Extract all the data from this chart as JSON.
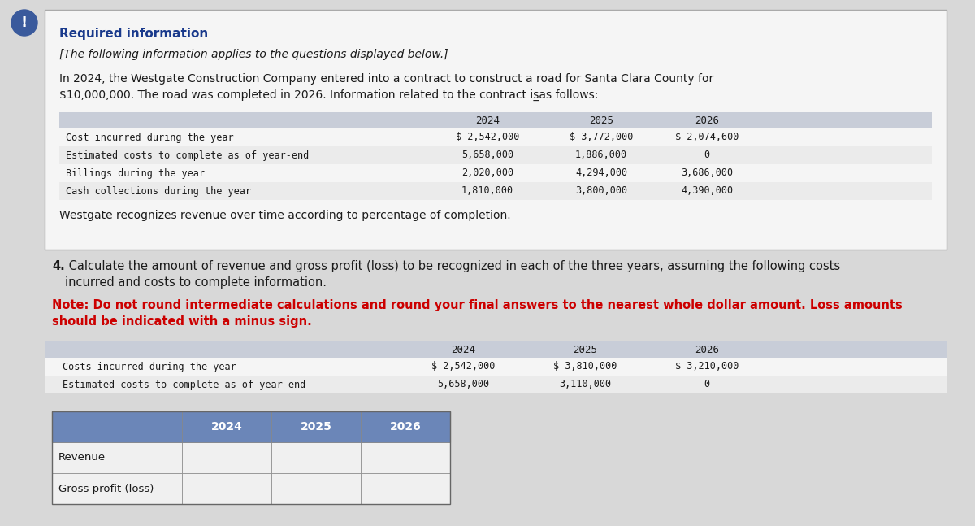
{
  "bg_color": "#d8d8d8",
  "panel_color": "#f5f5f5",
  "panel_border": "#aaaaaa",
  "table_header_bg": "#c8cdd8",
  "table_row_bg1": "#f5f5f5",
  "table_row_bg2": "#ebebeb",
  "answer_header_bg": "#6b86b8",
  "answer_row_bg": "#f0f0f0",
  "title_required": "Required information",
  "subtitle_italic": "[The following information applies to the questions displayed below.]",
  "body_line1": "In 2024, the Westgate Construction Company entered into a contract to construct a road for Santa Clara County for",
  "body_line2": "$10,000,000. The road was completed in 2026. Information related to the contract is̲as follows:",
  "info_rows": [
    "Cost incurred during the year",
    "Estimated costs to complete as of year-end",
    "Billings during the year",
    "Cash collections during the year"
  ],
  "info_years": [
    "2024",
    "2025",
    "2026"
  ],
  "info_data": [
    [
      "$ 2,542,000",
      "$ 3,772,000",
      "$ 2,074,600"
    ],
    [
      "5,658,000",
      "1,886,000",
      "0"
    ],
    [
      "2,020,000",
      "4,294,000",
      "3,686,000"
    ],
    [
      "1,810,000",
      "3,800,000",
      "4,390,000"
    ]
  ],
  "westgate_note": "Westgate recognizes revenue over time according to percentage of completion.",
  "q_text_bold": "4.",
  "q_text_rest_line1": " Calculate the amount of revenue and gross profit (loss) to be recognized in each of the three years, assuming the following costs",
  "q_text_rest_line2": "incurred and costs to complete information.",
  "note_line1": "Note: Do not round intermediate calculations and round your final answers to the nearest whole dollar amount. Loss amounts",
  "note_line2": "should be indicated with a minus sign.",
  "q_info_rows": [
    "Costs incurred during the year",
    "Estimated costs to complete as of year-end"
  ],
  "q_years": [
    "2024",
    "2025",
    "2026"
  ],
  "q_data": [
    [
      "$ 2,542,000",
      "$ 3,810,000",
      "$ 3,210,000"
    ],
    [
      "5,658,000",
      "3,110,000",
      "0"
    ]
  ],
  "answer_rows": [
    "Revenue",
    "Gross profit (loss)"
  ],
  "answer_years": [
    "2024",
    "2025",
    "2026"
  ],
  "icon_color": "#3a5a9c",
  "title_color": "#1a3a8c",
  "note_color": "#cc0000",
  "text_color": "#1a1a1a"
}
